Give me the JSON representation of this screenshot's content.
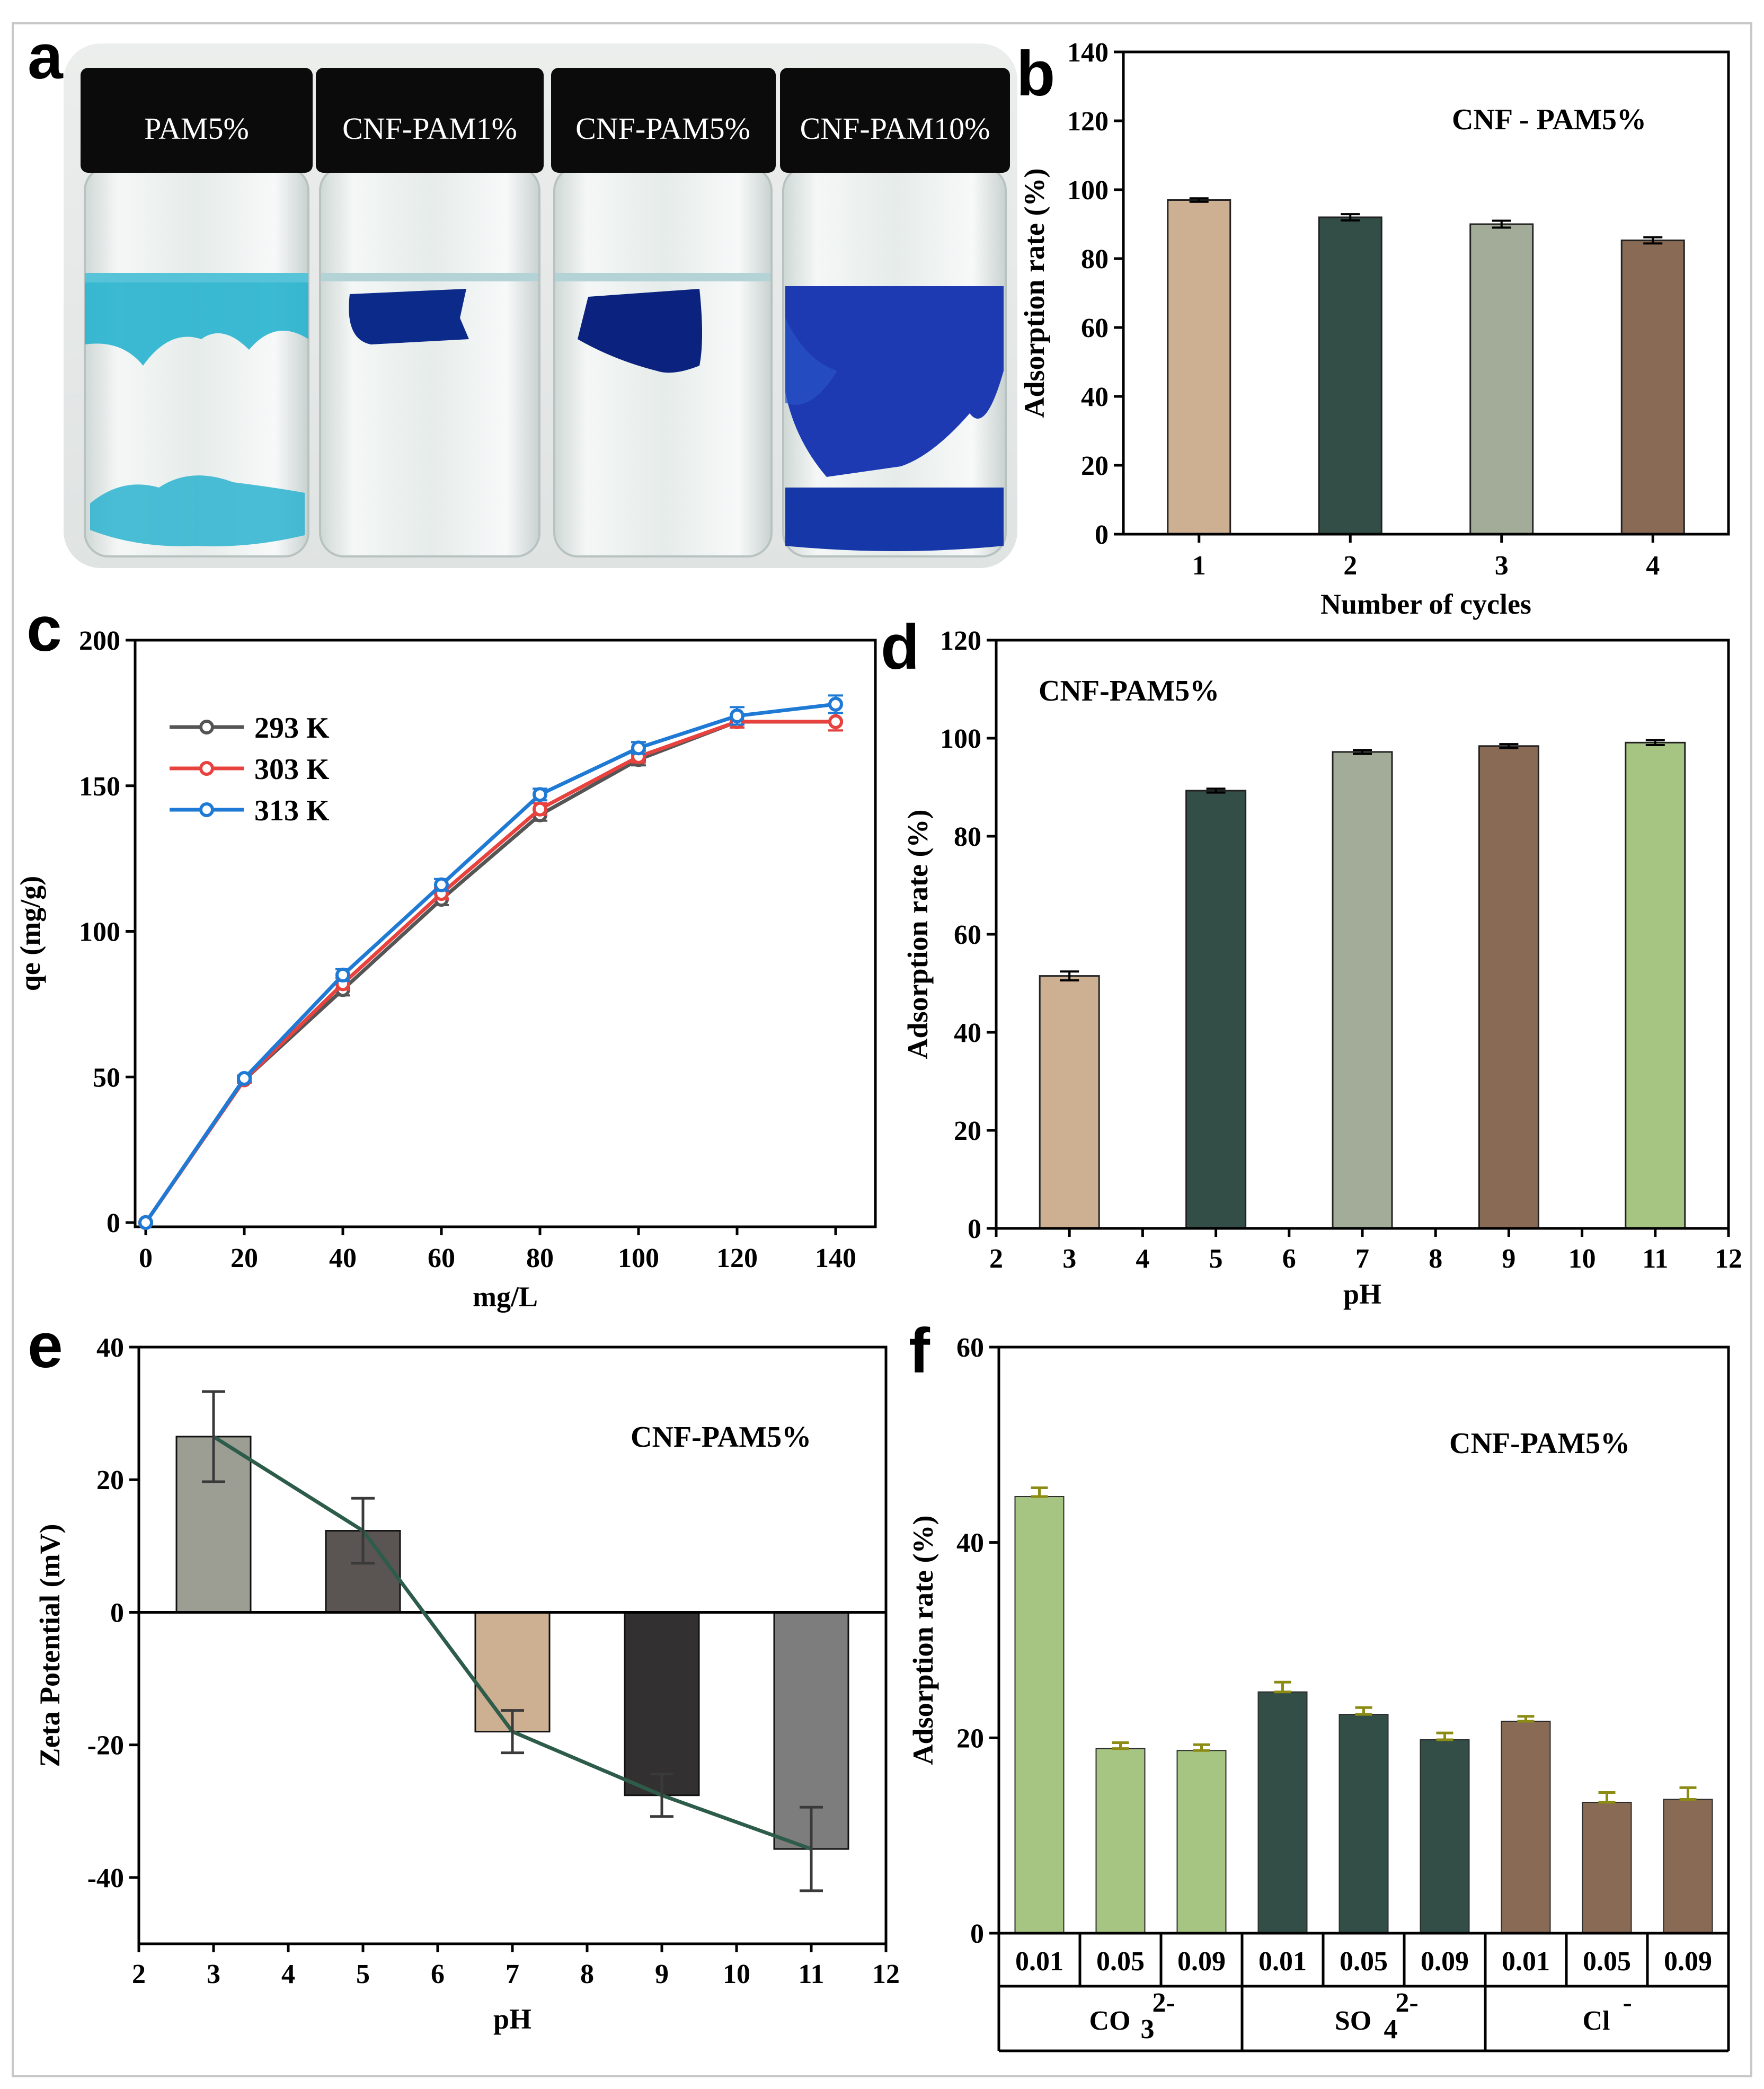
{
  "figure_labels": {
    "a": "a",
    "b": "b",
    "c": "c",
    "d": "d",
    "e": "e",
    "f": "f"
  },
  "photo": {
    "vials": [
      "PAM5%",
      "CNF-PAM1%",
      "CNF-PAM5%",
      "CNF-PAM10%"
    ]
  },
  "colors": {
    "tan": "#cdaf92",
    "dark_green": "#334d47",
    "sage": "#a2ac98",
    "brown": "#886a55",
    "light_green": "#a6c583",
    "line_gray": "#555555",
    "line_red": "#e8423e",
    "line_blue": "#1f7ad6",
    "zeta_line": "#2e5c4a",
    "olive_err": "#8c8c14"
  },
  "chart_data": [
    {
      "id": "b",
      "type": "bar",
      "annotation": "CNF - PAM5%",
      "categories": [
        "1",
        "2",
        "3",
        "4"
      ],
      "values": [
        97,
        92,
        90,
        85.3
      ],
      "errors": [
        0.5,
        0.9,
        1.0,
        0.9
      ],
      "bar_colors": [
        "#cdaf92",
        "#334d47",
        "#a2ac98",
        "#886a55"
      ],
      "xlabel": "Number of cycles",
      "ylabel": "Adsorption rate (%)",
      "ylim": [
        0,
        140
      ],
      "yticks": [
        0,
        20,
        40,
        60,
        80,
        100,
        120,
        140
      ]
    },
    {
      "id": "c",
      "type": "line",
      "x": [
        0,
        20,
        40,
        60,
        80,
        100,
        120,
        140
      ],
      "series": [
        {
          "name": "293 K",
          "color": "#555555",
          "values": [
            0,
            49,
            80,
            111,
            140,
            159,
            172,
            172
          ],
          "errors": [
            0,
            1,
            2,
            2,
            2,
            2,
            2,
            3
          ]
        },
        {
          "name": "303 K",
          "color": "#e8423e",
          "values": [
            0,
            49,
            82,
            113,
            142,
            160,
            172,
            172
          ],
          "errors": [
            0,
            1,
            2,
            2,
            2,
            2,
            2,
            3
          ]
        },
        {
          "name": "313 K",
          "color": "#1f7ad6",
          "values": [
            0,
            49.5,
            85,
            116,
            147,
            163,
            174,
            178
          ],
          "errors": [
            0,
            1,
            2,
            2,
            2,
            2,
            3,
            3
          ]
        }
      ],
      "xlabel": "mg/L",
      "ylabel": "qe (mg/g)",
      "xlim": [
        0,
        140
      ],
      "ylim": [
        0,
        200
      ],
      "xticks": [
        0,
        20,
        40,
        60,
        80,
        100,
        120,
        140
      ],
      "yticks": [
        0,
        50,
        100,
        150,
        200
      ]
    },
    {
      "id": "d",
      "type": "bar",
      "annotation": "CNF-PAM5%",
      "x": [
        3,
        5,
        7,
        9,
        11
      ],
      "values": [
        51.5,
        89.3,
        97.2,
        98.4,
        99.1
      ],
      "errors": [
        0.9,
        0.4,
        0.4,
        0.4,
        0.5
      ],
      "bar_colors": [
        "#cdaf92",
        "#334d47",
        "#a2ac98",
        "#886a55",
        "#a6c583"
      ],
      "xlabel": "pH",
      "ylabel": "Adsorption rate (%)",
      "xlim": [
        2,
        12
      ],
      "ylim": [
        0,
        120
      ],
      "xticks": [
        2,
        3,
        4,
        5,
        6,
        7,
        8,
        9,
        10,
        11,
        12
      ],
      "yticks": [
        0,
        20,
        40,
        60,
        80,
        100,
        120
      ]
    },
    {
      "id": "e",
      "type": "bar",
      "annotation": "CNF-PAM5%",
      "x": [
        3,
        5,
        7,
        9,
        11
      ],
      "values": [
        26.5,
        12.3,
        -18,
        -27.6,
        -35.7
      ],
      "errors": [
        6.8,
        4.9,
        3.2,
        3.2,
        6.3
      ],
      "bar_colors": [
        "#9c9d93",
        "#5a5453",
        "#cdaf92",
        "#333031",
        "#7d7d7d"
      ],
      "line_values": [
        26.5,
        12.3,
        -18,
        -27.6,
        -35.7
      ],
      "xlabel": "pH",
      "ylabel": "Zeta Potential (mV)",
      "xlim": [
        2,
        12
      ],
      "ylim": [
        -50,
        40
      ],
      "xticks": [
        2,
        3,
        4,
        5,
        6,
        7,
        8,
        9,
        10,
        11,
        12
      ],
      "yticks": [
        -40,
        -20,
        0,
        20,
        40
      ]
    },
    {
      "id": "f",
      "type": "bar",
      "annotation": "CNF-PAM5%",
      "categories": [
        "0.01",
        "0.05",
        "0.09",
        "0.01",
        "0.05",
        "0.09",
        "0.01",
        "0.05",
        "0.09"
      ],
      "groups": [
        "CO",
        "SO",
        "Cl"
      ],
      "group_superscripts": [
        "2-",
        "2-",
        "-"
      ],
      "group_subscripts": [
        "3",
        "4",
        ""
      ],
      "values": [
        44.7,
        18.9,
        18.7,
        24.7,
        22.4,
        19.8,
        21.7,
        13.4,
        13.7
      ],
      "errors": [
        0.9,
        0.6,
        0.6,
        1.0,
        0.7,
        0.7,
        0.5,
        1.0,
        1.2
      ],
      "bar_colors": [
        "#a6c583",
        "#a6c583",
        "#a6c583",
        "#334d47",
        "#334d47",
        "#334d47",
        "#886a55",
        "#886a55",
        "#886a55"
      ],
      "ylabel": "Adsorption rate (%)",
      "ylim": [
        0,
        60
      ],
      "yticks": [
        0,
        20,
        40,
        60
      ]
    }
  ]
}
